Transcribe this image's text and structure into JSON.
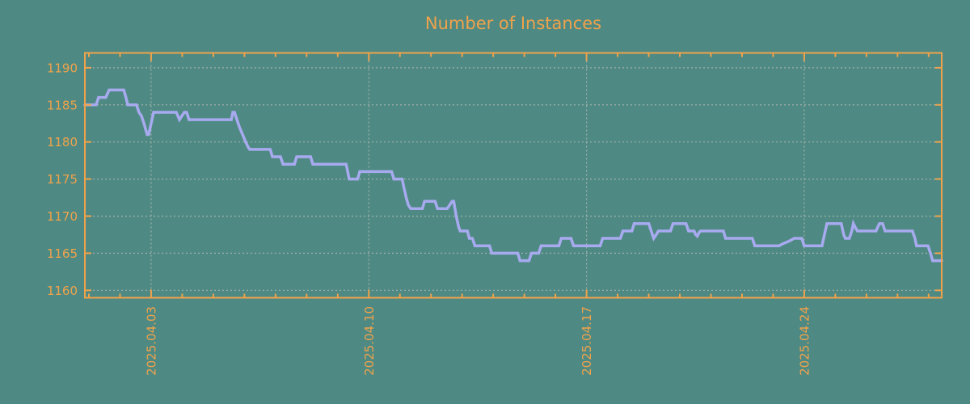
{
  "colors": {
    "background": "#4e8a83",
    "axis_and_labels": "#f0a24b",
    "series_line": "#a8aaf0",
    "gridline": "#b0b6b2"
  },
  "chart_data": {
    "type": "line",
    "title": "Number of Instances",
    "xlabel": "",
    "ylabel": "",
    "legend": "none",
    "grid": "dotted",
    "y_axis": {
      "ticks": [
        1160,
        1165,
        1170,
        1175,
        1180,
        1185,
        1190
      ],
      "range": [
        1159,
        1192
      ]
    },
    "x_axis": {
      "tick_labels": [
        "2025.04.03",
        "2025.04.10",
        "2025.04.17",
        "2025.04.24"
      ],
      "tick_days": [
        3,
        10,
        17,
        24
      ],
      "minor_tick_every_days": 1,
      "range_days": [
        0.87,
        28.42
      ],
      "label_rotation_deg": -90
    },
    "series": [
      {
        "name": "instances",
        "points": [
          [
            0.87,
            1185
          ],
          [
            1.23,
            1185
          ],
          [
            1.31,
            1186
          ],
          [
            1.54,
            1186
          ],
          [
            1.65,
            1187
          ],
          [
            2.12,
            1187
          ],
          [
            2.19,
            1186
          ],
          [
            2.25,
            1185
          ],
          [
            2.53,
            1185
          ],
          [
            2.61,
            1184
          ],
          [
            2.69,
            1183.5
          ],
          [
            2.77,
            1182.5
          ],
          [
            2.87,
            1181
          ],
          [
            2.92,
            1181
          ],
          [
            3.0,
            1182.5
          ],
          [
            3.08,
            1184
          ],
          [
            3.81,
            1184
          ],
          [
            3.86,
            1183.5
          ],
          [
            3.91,
            1183
          ],
          [
            3.99,
            1183.5
          ],
          [
            4.07,
            1184
          ],
          [
            4.14,
            1184
          ],
          [
            4.22,
            1183
          ],
          [
            5.58,
            1183
          ],
          [
            5.63,
            1184
          ],
          [
            5.68,
            1184
          ],
          [
            5.76,
            1183
          ],
          [
            5.84,
            1182
          ],
          [
            5.94,
            1181
          ],
          [
            6.04,
            1180
          ],
          [
            6.12,
            1179.3
          ],
          [
            6.17,
            1179
          ],
          [
            6.83,
            1179
          ],
          [
            6.9,
            1178
          ],
          [
            7.16,
            1178
          ],
          [
            7.24,
            1177
          ],
          [
            7.61,
            1177
          ],
          [
            7.68,
            1178
          ],
          [
            8.13,
            1178
          ],
          [
            8.2,
            1177
          ],
          [
            9.27,
            1177
          ],
          [
            9.32,
            1176
          ],
          [
            9.37,
            1175
          ],
          [
            9.64,
            1175
          ],
          [
            9.71,
            1176
          ],
          [
            10.73,
            1176
          ],
          [
            10.81,
            1175
          ],
          [
            11.07,
            1175
          ],
          [
            11.12,
            1174
          ],
          [
            11.2,
            1172.5
          ],
          [
            11.27,
            1171.5
          ],
          [
            11.35,
            1171
          ],
          [
            11.72,
            1171
          ],
          [
            11.79,
            1172
          ],
          [
            12.13,
            1172
          ],
          [
            12.21,
            1171
          ],
          [
            12.52,
            1171
          ],
          [
            12.6,
            1171.5
          ],
          [
            12.68,
            1172
          ],
          [
            12.73,
            1172
          ],
          [
            12.81,
            1170
          ],
          [
            12.89,
            1168.5
          ],
          [
            12.94,
            1168
          ],
          [
            13.17,
            1168
          ],
          [
            13.23,
            1167
          ],
          [
            13.33,
            1167
          ],
          [
            13.41,
            1166
          ],
          [
            13.88,
            1166
          ],
          [
            13.95,
            1165
          ],
          [
            14.79,
            1165
          ],
          [
            14.86,
            1164
          ],
          [
            15.15,
            1164
          ],
          [
            15.23,
            1165
          ],
          [
            15.46,
            1165
          ],
          [
            15.54,
            1166
          ],
          [
            16.11,
            1166
          ],
          [
            16.19,
            1167
          ],
          [
            16.5,
            1167
          ],
          [
            16.58,
            1166
          ],
          [
            17.44,
            1166
          ],
          [
            17.52,
            1167
          ],
          [
            18.09,
            1167
          ],
          [
            18.17,
            1168
          ],
          [
            18.46,
            1168
          ],
          [
            18.53,
            1169
          ],
          [
            19.0,
            1169
          ],
          [
            19.08,
            1168
          ],
          [
            19.16,
            1167
          ],
          [
            19.24,
            1167.5
          ],
          [
            19.31,
            1168
          ],
          [
            19.7,
            1168
          ],
          [
            19.78,
            1169
          ],
          [
            20.2,
            1169
          ],
          [
            20.28,
            1168
          ],
          [
            20.46,
            1168
          ],
          [
            20.51,
            1167.5
          ],
          [
            20.56,
            1167.3
          ],
          [
            20.62,
            1167.8
          ],
          [
            20.67,
            1168
          ],
          [
            21.4,
            1168
          ],
          [
            21.47,
            1167
          ],
          [
            22.33,
            1167
          ],
          [
            22.41,
            1166
          ],
          [
            23.19,
            1166
          ],
          [
            23.32,
            1166.3
          ],
          [
            23.5,
            1166.6
          ],
          [
            23.68,
            1167
          ],
          [
            23.92,
            1167
          ],
          [
            24.0,
            1166
          ],
          [
            24.57,
            1166
          ],
          [
            24.65,
            1167.5
          ],
          [
            24.73,
            1169
          ],
          [
            25.19,
            1169
          ],
          [
            25.27,
            1167.5
          ],
          [
            25.32,
            1167
          ],
          [
            25.45,
            1167
          ],
          [
            25.53,
            1168
          ],
          [
            25.58,
            1169
          ],
          [
            25.64,
            1168.5
          ],
          [
            25.71,
            1168
          ],
          [
            26.31,
            1168
          ],
          [
            26.36,
            1168.5
          ],
          [
            26.42,
            1169
          ],
          [
            26.52,
            1169
          ],
          [
            26.6,
            1168
          ],
          [
            27.48,
            1168
          ],
          [
            27.56,
            1167
          ],
          [
            27.61,
            1166
          ],
          [
            27.98,
            1166
          ],
          [
            28.06,
            1165
          ],
          [
            28.13,
            1164
          ],
          [
            28.42,
            1164
          ]
        ]
      }
    ]
  }
}
